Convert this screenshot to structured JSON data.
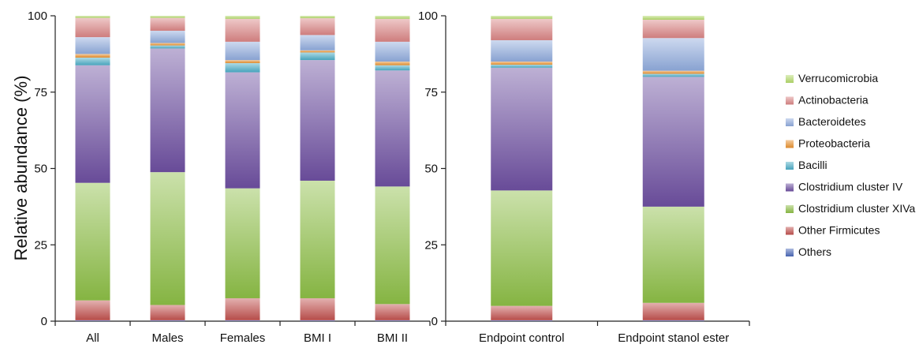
{
  "chart_data": [
    {
      "type": "bar",
      "stacked": true,
      "ylabel": "Relative abundance (%)",
      "ylim": [
        0,
        100
      ],
      "yticks": [
        0,
        25,
        50,
        75,
        100
      ],
      "categories": [
        "All",
        "Males",
        "Females",
        "BMI I",
        "BMI II"
      ],
      "series": [
        {
          "name": "Others",
          "values": [
            0.3,
            0.3,
            0.3,
            0.3,
            0.3
          ]
        },
        {
          "name": "Other Firmicutes",
          "values": [
            6.5,
            5.0,
            7.2,
            7.2,
            5.3
          ]
        },
        {
          "name": "Clostridium cluster XIVa",
          "values": [
            38.5,
            43.5,
            36.0,
            38.5,
            38.5
          ]
        },
        {
          "name": "Clostridium cluster IV",
          "values": [
            38.5,
            40.5,
            38.0,
            39.5,
            38.0
          ]
        },
        {
          "name": "Bacilli",
          "values": [
            2.5,
            1.0,
            3.0,
            2.5,
            1.7
          ]
        },
        {
          "name": "Proteobacteria",
          "values": [
            1.2,
            0.8,
            1.0,
            0.7,
            1.2
          ]
        },
        {
          "name": "Bacteroidetes",
          "values": [
            5.5,
            4.0,
            6.0,
            5.0,
            6.5
          ]
        },
        {
          "name": "Actinobacteria",
          "values": [
            6.3,
            4.2,
            7.5,
            5.5,
            7.5
          ]
        },
        {
          "name": "Verrucomicrobia",
          "values": [
            0.7,
            0.7,
            1.0,
            0.8,
            1.0
          ]
        }
      ]
    },
    {
      "type": "bar",
      "stacked": true,
      "ylim": [
        0,
        100
      ],
      "yticks": [
        0,
        25,
        50,
        75,
        100
      ],
      "categories": [
        "Endpoint control",
        "Endpoint stanol ester"
      ],
      "series": [
        {
          "name": "Others",
          "values": [
            0.3,
            0.3
          ]
        },
        {
          "name": "Other Firmicutes",
          "values": [
            4.7,
            5.7
          ]
        },
        {
          "name": "Clostridium cluster XIVa",
          "values": [
            37.8,
            31.5
          ]
        },
        {
          "name": "Clostridium cluster IV",
          "values": [
            40.2,
            42.5
          ]
        },
        {
          "name": "Bacilli",
          "values": [
            1.0,
            1.0
          ]
        },
        {
          "name": "Proteobacteria",
          "values": [
            1.0,
            1.0
          ]
        },
        {
          "name": "Bacteroidetes",
          "values": [
            7.0,
            10.7
          ]
        },
        {
          "name": "Actinobacteria",
          "values": [
            7.0,
            6.0
          ]
        },
        {
          "name": "Verrucomicrobia",
          "values": [
            1.0,
            1.3
          ]
        }
      ]
    }
  ],
  "legend": {
    "placement": "right",
    "entries": [
      "Verrucomicrobia",
      "Actinobacteria",
      "Bacteroidetes",
      "Proteobacteria",
      "Bacilli",
      "Clostridium cluster IV",
      "Clostridium cluster XIVa",
      "Other Firmicutes",
      "Others"
    ]
  },
  "colors": {
    "Others": "#4a68b8",
    "Other Firmicutes": "#c0504d",
    "Clostridium cluster XIVa": "#8cbd45",
    "Clostridium cluster IV": "#6d4fa0",
    "Bacilli": "#4bacc6",
    "Proteobacteria": "#e8902e",
    "Bacteroidetes": "#8faadc",
    "Actinobacteria": "#d98484",
    "Verrucomicrobia": "#b3d96a"
  }
}
